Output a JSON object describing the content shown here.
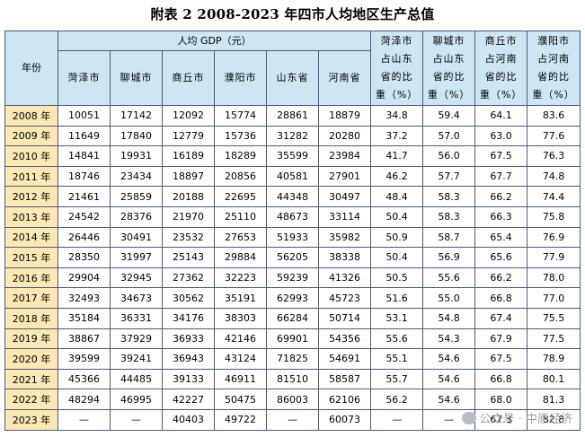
{
  "title": "附表 2  2008-2023 年四市人均地区生产总值",
  "header": {
    "year": "年份",
    "gdp_group": "人均 GDP（元）",
    "cities": [
      "菏泽市",
      "聊城市",
      "商丘市",
      "濮阳市",
      "山东省",
      "河南省"
    ],
    "ratios": [
      [
        "菏泽市",
        "占山东",
        "省的比",
        "重（%）"
      ],
      [
        "聊城市",
        "占山东",
        "省的比",
        "重（%）"
      ],
      [
        "商丘市",
        "占河南",
        "省的比",
        "重（%）"
      ],
      [
        "濮阳市",
        "占河南",
        "省的比",
        "重（%）"
      ]
    ]
  },
  "rows": [
    {
      "year": "2008 年",
      "cells": [
        "10051",
        "17142",
        "12092",
        "15774",
        "28861",
        "18879",
        "34.8",
        "59.4",
        "64.1",
        "83.6"
      ]
    },
    {
      "year": "2009 年",
      "cells": [
        "11649",
        "17840",
        "12779",
        "15736",
        "31282",
        "20280",
        "37.2",
        "57.0",
        "63.0",
        "77.6"
      ]
    },
    {
      "year": "2010 年",
      "cells": [
        "14841",
        "19931",
        "16189",
        "18289",
        "35599",
        "23984",
        "41.7",
        "56.0",
        "67.5",
        "76.3"
      ]
    },
    {
      "year": "2011 年",
      "cells": [
        "18746",
        "23434",
        "18897",
        "20856",
        "40581",
        "27901",
        "46.2",
        "57.7",
        "67.7",
        "74.8"
      ]
    },
    {
      "year": "2012 年",
      "cells": [
        "21461",
        "25859",
        "20188",
        "22695",
        "44348",
        "30497",
        "48.4",
        "58.3",
        "66.2",
        "74.4"
      ]
    },
    {
      "year": "2013 年",
      "cells": [
        "24542",
        "28376",
        "21970",
        "25110",
        "48673",
        "33114",
        "50.4",
        "58.3",
        "66.3",
        "75.8"
      ]
    },
    {
      "year": "2014 年",
      "cells": [
        "26446",
        "30491",
        "23532",
        "27653",
        "51933",
        "35982",
        "50.9",
        "58.7",
        "65.4",
        "76.9"
      ]
    },
    {
      "year": "2015 年",
      "cells": [
        "28350",
        "31997",
        "25143",
        "29884",
        "56205",
        "38338",
        "50.4",
        "56.9",
        "65.6",
        "77.9"
      ]
    },
    {
      "year": "2016 年",
      "cells": [
        "29904",
        "32945",
        "27362",
        "32223",
        "59239",
        "41326",
        "50.5",
        "55.6",
        "66.2",
        "78.0"
      ]
    },
    {
      "year": "2017 年",
      "cells": [
        "32493",
        "34673",
        "30562",
        "35191",
        "62993",
        "45723",
        "51.6",
        "55.0",
        "66.8",
        "77.0"
      ]
    },
    {
      "year": "2018 年",
      "cells": [
        "35184",
        "36331",
        "34176",
        "38303",
        "66284",
        "50714",
        "53.1",
        "54.8",
        "67.4",
        "75.5"
      ]
    },
    {
      "year": "2019 年",
      "cells": [
        "38867",
        "37929",
        "36933",
        "42146",
        "69901",
        "54356",
        "55.6",
        "54.3",
        "67.9",
        "77.5"
      ]
    },
    {
      "year": "2020 年",
      "cells": [
        "39599",
        "39241",
        "36943",
        "43124",
        "71825",
        "54691",
        "55.1",
        "54.6",
        "67.5",
        "78.9"
      ]
    },
    {
      "year": "2021 年",
      "cells": [
        "45366",
        "44485",
        "39133",
        "46911",
        "81510",
        "58587",
        "55.7",
        "54.6",
        "66.8",
        "80.1"
      ]
    },
    {
      "year": "2022 年",
      "cells": [
        "48294",
        "46995",
        "42227",
        "50475",
        "86003",
        "62106",
        "56.2",
        "54.6",
        "68.0",
        "81.3"
      ]
    },
    {
      "year": "2023 年",
      "cells": [
        "—",
        "—",
        "40403",
        "49722",
        "—",
        "60073",
        "—",
        "—",
        "67.3",
        "82.8"
      ]
    }
  ],
  "watermark": "公众号 · 中原经济"
}
